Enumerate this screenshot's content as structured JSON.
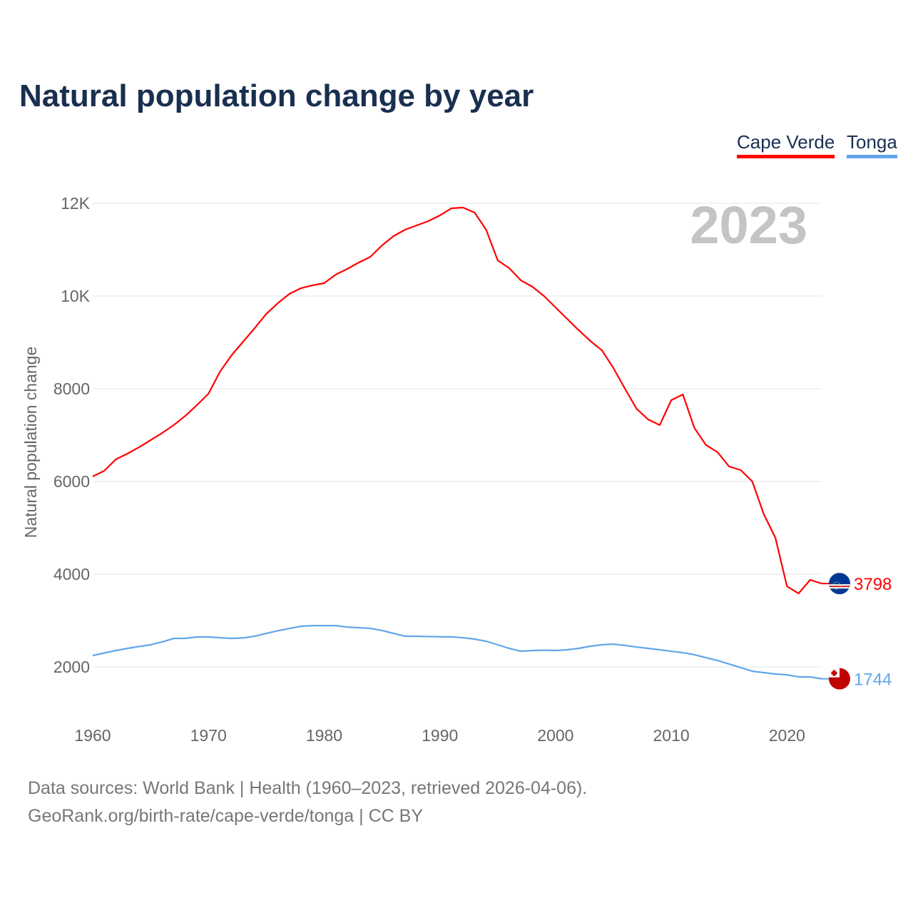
{
  "title": "Natural population change by year",
  "footer": {
    "line1": "Data sources: World Bank | Health (1960–2023, retrieved 2026-04-06).",
    "line2": "GeoRank.org/birth-rate/cape-verde/tonga | CC BY"
  },
  "chart_data": {
    "type": "line",
    "title": "Natural population change by year",
    "xlabel": "",
    "ylabel": "Natural population change",
    "year_label": "2023",
    "xlim": [
      1960,
      2023
    ],
    "ylim": [
      1000,
      12500
    ],
    "x_ticks": [
      1960,
      1970,
      1980,
      1990,
      2000,
      2010,
      2020
    ],
    "y_ticks": [
      {
        "v": 2000,
        "label": "2000"
      },
      {
        "v": 4000,
        "label": "4000"
      },
      {
        "v": 6000,
        "label": "6000"
      },
      {
        "v": 8000,
        "label": "8000"
      },
      {
        "v": 10000,
        "label": "10K"
      },
      {
        "v": 12000,
        "label": "12K"
      }
    ],
    "grid": true,
    "legend_placement": "top-right",
    "x": [
      1960,
      1961,
      1962,
      1963,
      1964,
      1965,
      1966,
      1967,
      1968,
      1969,
      1970,
      1971,
      1972,
      1973,
      1974,
      1975,
      1976,
      1977,
      1978,
      1979,
      1980,
      1981,
      1982,
      1983,
      1984,
      1985,
      1986,
      1987,
      1988,
      1989,
      1990,
      1991,
      1992,
      1993,
      1994,
      1995,
      1996,
      1997,
      1998,
      1999,
      2000,
      2001,
      2002,
      2003,
      2004,
      2005,
      2006,
      2007,
      2008,
      2009,
      2010,
      2011,
      2012,
      2013,
      2014,
      2015,
      2016,
      2017,
      2018,
      2019,
      2020,
      2021,
      2022,
      2023
    ],
    "series": [
      {
        "name": "Cape Verde",
        "color": "#ff0000",
        "end_label": "3798",
        "flag": "cape-verde-flag",
        "values": [
          6108,
          6231,
          6477,
          6600,
          6738,
          6892,
          7046,
          7215,
          7415,
          7646,
          7892,
          8369,
          8723,
          9015,
          9308,
          9615,
          9846,
          10046,
          10169,
          10231,
          10277,
          10462,
          10585,
          10723,
          10846,
          11092,
          11292,
          11431,
          11523,
          11615,
          11738,
          11892,
          11908,
          11800,
          11431,
          10769,
          10600,
          10338,
          10200,
          10000,
          9754,
          9508,
          9262,
          9031,
          8831,
          8446,
          8000,
          7569,
          7338,
          7215,
          7754,
          7877,
          7154,
          6785,
          6631,
          6323,
          6246,
          6000,
          5292,
          4785,
          3738,
          3585,
          3877,
          3798
        ]
      },
      {
        "name": "Tonga",
        "color": "#62a6ea",
        "end_label": "1744",
        "flag": "tonga-flag",
        "values": [
          2246,
          2300,
          2354,
          2400,
          2440,
          2477,
          2540,
          2615,
          2615,
          2646,
          2646,
          2630,
          2615,
          2625,
          2662,
          2723,
          2780,
          2830,
          2877,
          2890,
          2890,
          2890,
          2860,
          2846,
          2830,
          2785,
          2723,
          2662,
          2662,
          2655,
          2650,
          2648,
          2630,
          2600,
          2554,
          2477,
          2400,
          2338,
          2354,
          2360,
          2354,
          2369,
          2400,
          2446,
          2477,
          2492,
          2462,
          2430,
          2400,
          2369,
          2338,
          2308,
          2262,
          2200,
          2138,
          2062,
          1985,
          1908,
          1877,
          1846,
          1830,
          1785,
          1785,
          1744
        ]
      }
    ]
  }
}
